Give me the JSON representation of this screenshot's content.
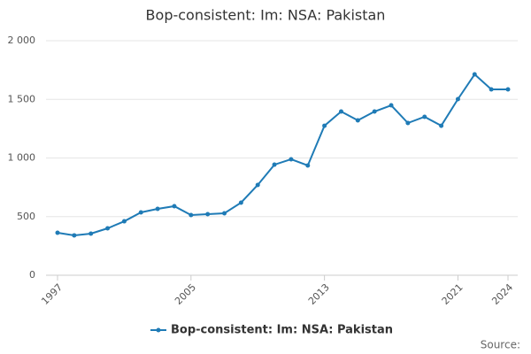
{
  "chart_data": {
    "type": "line",
    "title": "Bop-consistent: Im: NSA: Pakistan",
    "x": [
      1997,
      1998,
      1999,
      2000,
      2001,
      2002,
      2003,
      2004,
      2005,
      2006,
      2007,
      2008,
      2009,
      2010,
      2011,
      2012,
      2013,
      2014,
      2015,
      2016,
      2017,
      2018,
      2019,
      2020,
      2021,
      2022,
      2023,
      2024
    ],
    "series": [
      {
        "name": "Bop-consistent: Im: NSA: Pakistan",
        "color": "#1f7bb6",
        "values": [
          362,
          340,
          355,
          400,
          460,
          536,
          566,
          589,
          513,
          521,
          528,
          619,
          770,
          943,
          989,
          936,
          1275,
          1396,
          1321,
          1396,
          1449,
          1298,
          1351,
          1275,
          1502,
          1713,
          1585,
          1585
        ]
      }
    ],
    "xlim": [
      1997,
      2024
    ],
    "xticks": [
      1997,
      2005,
      2013,
      2021,
      2024
    ],
    "ylim": [
      0,
      2000
    ],
    "yticks": [
      0,
      500,
      {
        "value": 1000,
        "label": "1 000"
      },
      {
        "value": 1500,
        "label": "1 500"
      },
      {
        "value": 2000,
        "label": "2 000"
      }
    ],
    "grid": true,
    "legend": "bottom",
    "source": "Source:"
  }
}
